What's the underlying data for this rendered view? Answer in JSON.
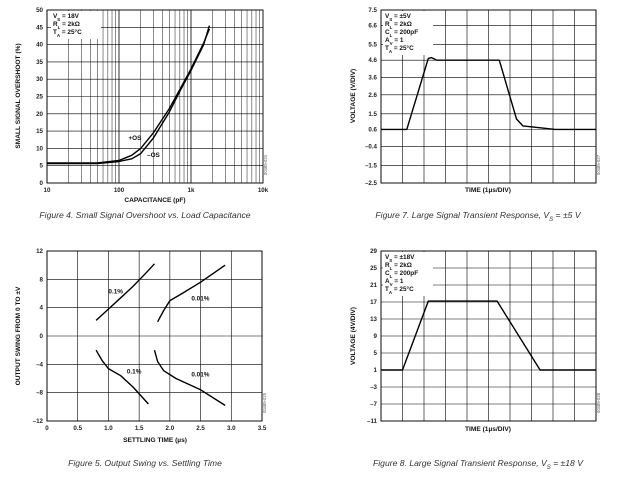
{
  "chart_data": [
    {
      "type": "line",
      "title": "Figure 4. Small Signal Overshoot vs. Load Capacitance",
      "xlabel": "CAPACITANCE (pF)",
      "ylabel": "SMALL SIGNAL OVERSHOOT (%)",
      "xscale": "log",
      "xlim": [
        10,
        10000
      ],
      "ylim": [
        0,
        50
      ],
      "xticks": [
        10,
        100,
        1000,
        10000
      ],
      "xtick_labels": [
        "10",
        "100",
        "1k",
        "10k"
      ],
      "yticks": [
        0,
        5,
        10,
        15,
        20,
        25,
        30,
        35,
        40,
        45,
        50
      ],
      "ytick_labels": [
        "0",
        "5",
        "10",
        "15",
        "20",
        "25",
        "30",
        "35",
        "40",
        "45",
        "50"
      ],
      "conditions": [
        "V_S = 18V",
        "R_L = 2kΩ",
        "T_A = 25°C"
      ],
      "code": "00485-024",
      "series": [
        {
          "name": "+OS",
          "x": [
            10,
            50,
            100,
            150,
            200,
            300,
            500,
            700,
            1000,
            1500,
            1800
          ],
          "y": [
            5.8,
            5.8,
            6.5,
            8,
            10,
            14.5,
            21.5,
            27,
            33,
            40.5,
            44.5
          ]
        },
        {
          "name": "–OS",
          "x": [
            10,
            50,
            100,
            150,
            200,
            300,
            500,
            700,
            1000,
            1500,
            1800
          ],
          "y": [
            5.6,
            5.6,
            6.2,
            7,
            8.5,
            13,
            20.5,
            26.5,
            32.5,
            40,
            45.5
          ]
        }
      ],
      "annotations": [
        {
          "text": "+OS",
          "x": 135,
          "y": 12.5
        },
        {
          "text": "–OS",
          "x": 245,
          "y": 7.5
        }
      ]
    },
    {
      "type": "line",
      "title": "Figure 7. Large Signal Transient Response, V_S = ±5 V",
      "xlabel": "TIME (1µs/DIV)",
      "ylabel": "VOLTAGE (V/DIV)",
      "xlim": [
        0,
        10
      ],
      "ylim": [
        -2.5,
        7.5
      ],
      "yticks": [
        -2.5,
        -1.5,
        -0.4,
        0.6,
        1.5,
        2.6,
        3.6,
        4.6,
        5.5,
        6.6,
        7.5
      ],
      "ytick_labels": [
        "–2.5",
        "–1.5",
        "–0.4",
        "0.6",
        "1.5",
        "2.6",
        "3.6",
        "4.6",
        "5.5",
        "6.6",
        "7.5"
      ],
      "conditions": [
        "V_S = ±5V",
        "R_L = 2kΩ",
        "C_L = 200pF",
        "A_V = 1",
        "T_A = 25°C"
      ],
      "code": "00485-027",
      "series": [
        {
          "name": "output",
          "x": [
            0,
            1.2,
            2.2,
            2.35,
            2.6,
            5.5,
            6.3,
            6.6,
            8.1,
            10
          ],
          "y": [
            0.6,
            0.6,
            4.7,
            4.75,
            4.6,
            4.6,
            1.2,
            0.8,
            0.6,
            0.6
          ]
        }
      ]
    },
    {
      "type": "line",
      "title": "Figure 5. Output Swing vs. Settling Time",
      "xlabel": "SETTLING TIME (µs)",
      "ylabel": "OUTPUT SWING FROM 0 TO ±V",
      "xlim": [
        0,
        3.5
      ],
      "ylim": [
        -12,
        12
      ],
      "xticks": [
        0,
        0.5,
        1.0,
        1.5,
        2.0,
        2.5,
        3.0,
        3.5
      ],
      "xtick_labels": [
        "0",
        "0.5",
        "1.0",
        "1.5",
        "2.0",
        "2.5",
        "3.0",
        "3.5"
      ],
      "yticks": [
        -12,
        -8,
        -4,
        0,
        4,
        8,
        12
      ],
      "ytick_labels": [
        "–12",
        "–8",
        "–4",
        "0",
        "4",
        "8",
        "12"
      ],
      "code": "00485-025",
      "series": [
        {
          "name": "0.1% positive",
          "x": [
            0.8,
            1.0,
            1.2,
            1.4,
            1.6,
            1.75
          ],
          "y": [
            2.2,
            3.8,
            5.4,
            7.0,
            8.8,
            10.2
          ]
        },
        {
          "name": "0.01% positive",
          "x": [
            1.8,
            1.9,
            2.0,
            2.2,
            2.5,
            2.9
          ],
          "y": [
            2.0,
            3.6,
            5.0,
            6.0,
            7.6,
            10.0
          ]
        },
        {
          "name": "0.1% negative",
          "x": [
            0.8,
            0.9,
            1.0,
            1.2,
            1.4,
            1.65
          ],
          "y": [
            -2.0,
            -3.5,
            -4.6,
            -5.6,
            -7.2,
            -9.6
          ]
        },
        {
          "name": "0.01% negative",
          "x": [
            1.75,
            1.8,
            1.9,
            2.1,
            2.5,
            2.9
          ],
          "y": [
            -2.0,
            -3.6,
            -4.9,
            -6.0,
            -7.6,
            -9.8
          ]
        }
      ],
      "annotations": [
        {
          "text": "0.1%",
          "x": 1.0,
          "y": 6.0
        },
        {
          "text": "0.01%",
          "x": 2.35,
          "y": 5.0
        },
        {
          "text": "0.1%",
          "x": 1.3,
          "y": -5.3
        },
        {
          "text": "0.01%",
          "x": 2.35,
          "y": -5.7
        }
      ]
    },
    {
      "type": "line",
      "title": "Figure 8. Large Signal Transient Response, V_S = ±18 V",
      "xlabel": "TIME (1µs/DIV)",
      "ylabel": "VOLTAGE (4V/DIV)",
      "xlim": [
        0,
        10
      ],
      "ylim": [
        -11,
        29
      ],
      "yticks": [
        -11,
        -7,
        -3,
        1,
        5,
        9,
        13,
        17,
        21,
        25,
        29
      ],
      "ytick_labels": [
        "–11",
        "–7",
        "–3",
        "1",
        "5",
        "9",
        "13",
        "17",
        "21",
        "25",
        "29"
      ],
      "conditions": [
        "V_S = ±18V",
        "R_L = 2kΩ",
        "C_L = 200pF",
        "A_V = 1",
        "T_A = 25°C"
      ],
      "code": "00485-028",
      "series": [
        {
          "name": "output",
          "x": [
            0,
            1.0,
            2.2,
            5.4,
            7.4,
            10
          ],
          "y": [
            1,
            1,
            17.2,
            17.2,
            1,
            1
          ]
        }
      ]
    }
  ]
}
